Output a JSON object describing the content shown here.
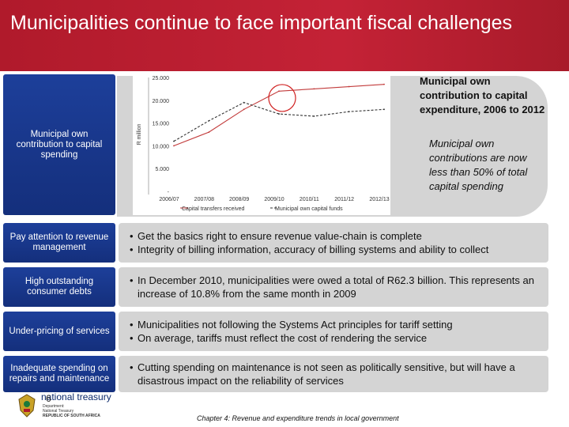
{
  "title": "Municipalities continue to face important fiscal challenges",
  "chart_section": {
    "left_label": "Municipal own contribution to capital spending",
    "note_bold": "Municipal own contribution to capital expenditure, 2006 to 2012",
    "note_italic": "Municipal own contributions are now less than 50% of total capital spending"
  },
  "chart_data": {
    "type": "line",
    "categories": [
      "2006/07",
      "2007/08",
      "2008/09",
      "2009/10",
      "2010/11",
      "2011/12",
      "2012/13"
    ],
    "ylabel": "R million",
    "ylim": [
      0,
      25000
    ],
    "yticks": [
      "-",
      "5.000",
      "10.000",
      "15.000",
      "20.000",
      "25.000"
    ],
    "series": [
      {
        "name": "Capital transfers received",
        "values": [
          10000,
          13000,
          18000,
          22000,
          22500,
          23000,
          23500
        ],
        "color": "#c23b3b",
        "dash": false
      },
      {
        "name": "Municipal own capital funds",
        "values": [
          11000,
          15500,
          19500,
          17000,
          16500,
          17500,
          18000
        ],
        "color": "#333333",
        "dash": true
      }
    ],
    "annotation": "circle at 2009/10"
  },
  "rows": [
    {
      "label": "Pay attention to revenue management",
      "bullets": [
        "Get the basics right to ensure revenue value-chain is complete",
        "Integrity of billing information, accuracy of billing systems and ability to collect"
      ]
    },
    {
      "label": "High outstanding consumer debts",
      "bullets": [
        "In December 2010, municipalities were owed a total of R62.3 billion. This represents an increase of 10.8% from the same month in 2009"
      ]
    },
    {
      "label": "Under-pricing of services",
      "bullets": [
        "Municipalities not following the Systems Act principles for tariff setting",
        "On average, tariffs must reflect the cost of rendering the service"
      ]
    },
    {
      "label": "Inadequate spending on repairs and maintenance",
      "bullets": [
        "Cutting spending on maintenance is not seen as politically sensitive, but will have a disastrous impact on the reliability of services"
      ]
    }
  ],
  "footer": "Chapter 4: Revenue and expenditure trends in local government",
  "logo": {
    "name": "national treasury",
    "sub1": "Department:",
    "sub2": "National Treasury",
    "sub3": "REPUBLIC OF SOUTH AFRICA",
    "page": "6"
  },
  "colors": {
    "title_bg": "#b01a2b",
    "left_box": "#1d3f9a",
    "right_box": "#d4d4d4"
  }
}
